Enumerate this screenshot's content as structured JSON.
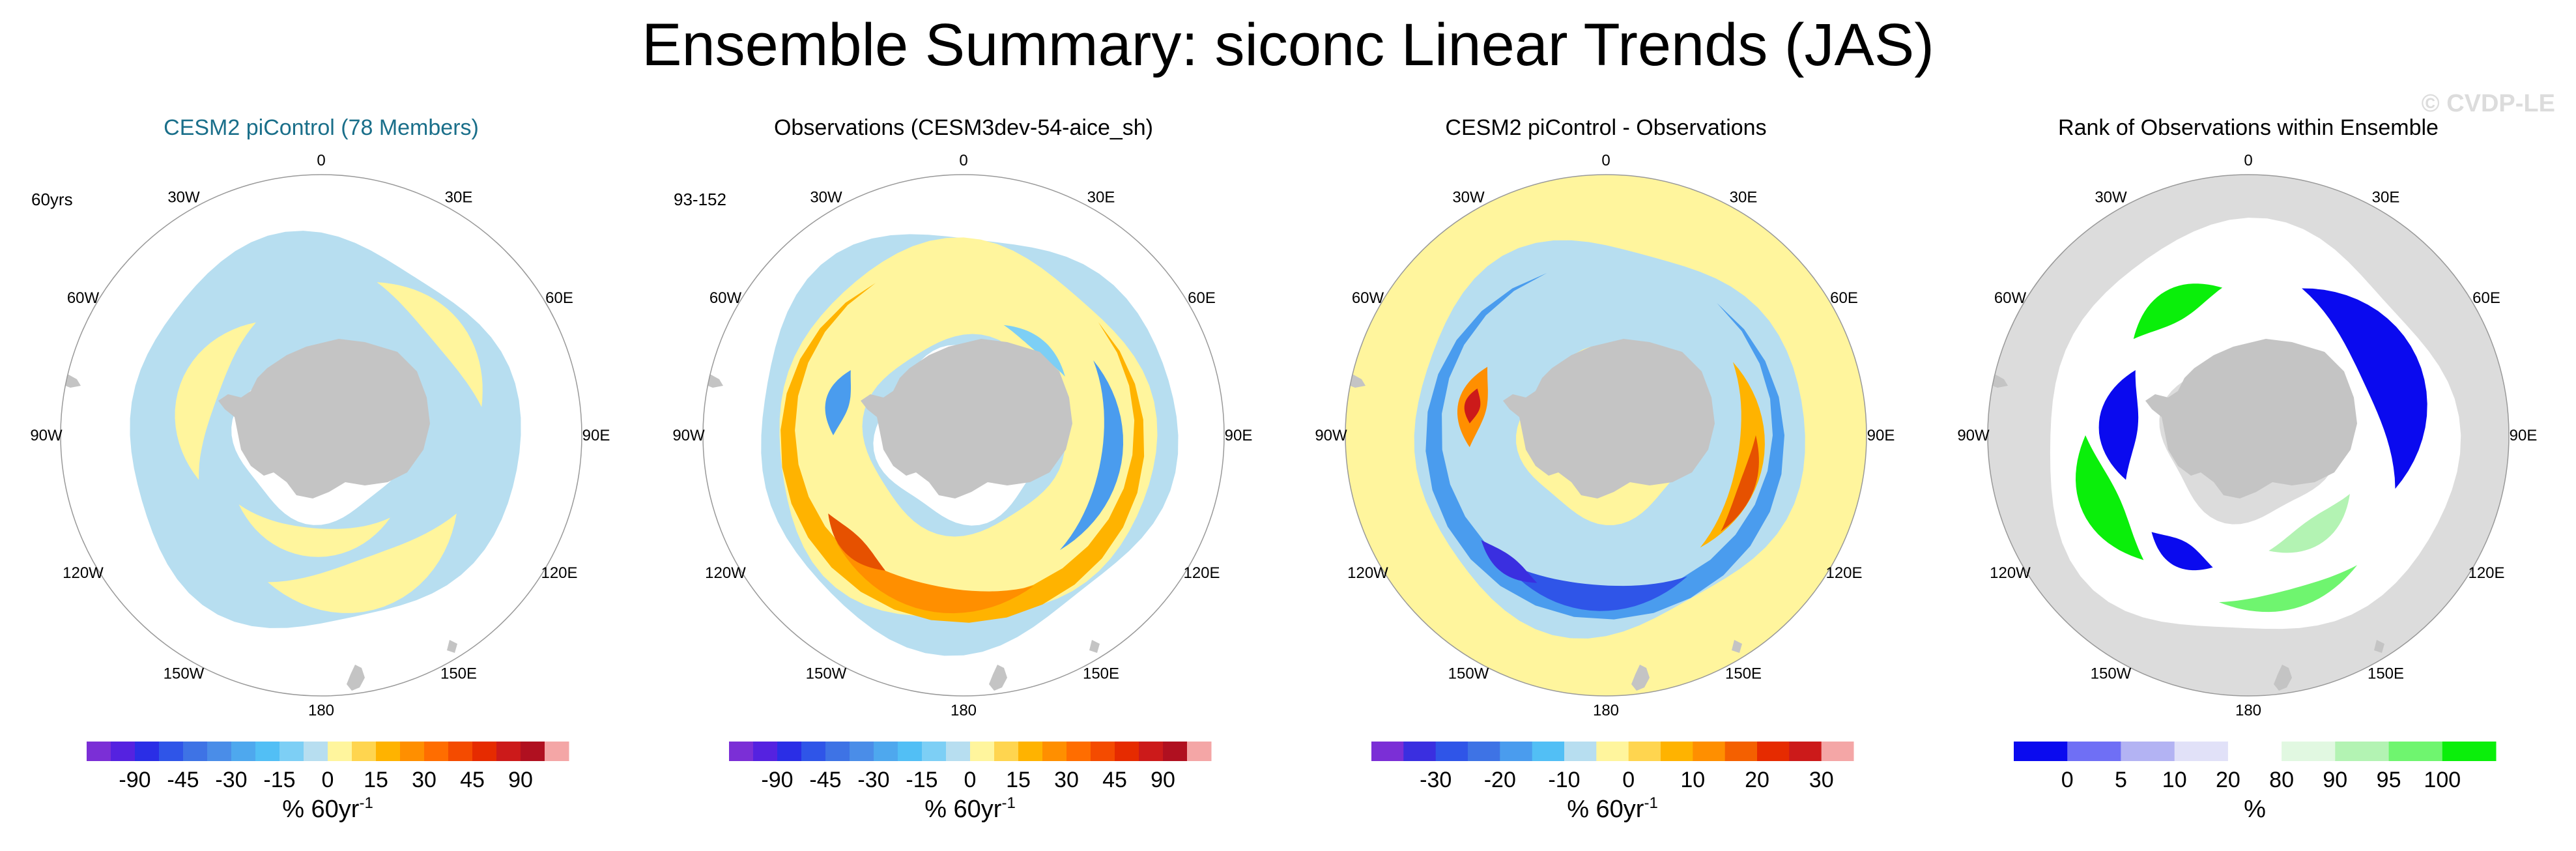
{
  "title": "Ensemble Summary: siconc Linear Trends (JAS)",
  "watermark": "© CVDP-LE",
  "colors": {
    "land": "#c4c4c4",
    "ocean_blank": "#ffffff",
    "circle_edge": "#999999",
    "title_accent": "#1a6f8a"
  },
  "chart_data": [
    {
      "type": "heatmap",
      "projection": "south-polar-stereographic",
      "title": "CESM2 piControl (78 Members)",
      "title_color": "#1a6f8a",
      "side_label": "60yrs",
      "lon_labels": [
        "0",
        "30E",
        "60E",
        "90E",
        "120E",
        "150E",
        "180",
        "150W",
        "120W",
        "90W",
        "60W",
        "30W"
      ],
      "colorbar": {
        "ticks": [
          "-90",
          "-45",
          "-30",
          "-15",
          "0",
          "15",
          "30",
          "45",
          "90"
        ],
        "unit": "% 60yr",
        "unit_sup": "-1",
        "colors": [
          "#7b2fd6",
          "#5522e0",
          "#2a2ee6",
          "#2f55e8",
          "#3e73e5",
          "#4a8de8",
          "#4ea8ee",
          "#52bff5",
          "#7dcff5",
          "#b7def0",
          "#fff59d",
          "#ffd54f",
          "#ffb300",
          "#ff8f00",
          "#ff6d00",
          "#f44b00",
          "#e62b00",
          "#cc1a1a",
          "#b01020",
          "#f4a6a6"
        ]
      }
    },
    {
      "type": "heatmap",
      "projection": "south-polar-stereographic",
      "title": "Observations (CESM3dev-54-aice_sh)",
      "side_label": "93-152",
      "lon_labels": [
        "0",
        "30E",
        "60E",
        "90E",
        "120E",
        "150E",
        "180",
        "150W",
        "120W",
        "90W",
        "60W",
        "30W"
      ],
      "colorbar": {
        "ticks": [
          "-90",
          "-45",
          "-30",
          "-15",
          "0",
          "15",
          "30",
          "45",
          "90"
        ],
        "unit": "% 60yr",
        "unit_sup": "-1",
        "colors": [
          "#7b2fd6",
          "#5522e0",
          "#2a2ee6",
          "#2f55e8",
          "#3e73e5",
          "#4a8de8",
          "#4ea8ee",
          "#52bff5",
          "#7dcff5",
          "#b7def0",
          "#fff59d",
          "#ffd54f",
          "#ffb300",
          "#ff8f00",
          "#ff6d00",
          "#f44b00",
          "#e62b00",
          "#cc1a1a",
          "#b01020",
          "#f4a6a6"
        ]
      }
    },
    {
      "type": "heatmap",
      "projection": "south-polar-stereographic",
      "title": "CESM2 piControl - Observations",
      "lon_labels": [
        "0",
        "30E",
        "60E",
        "90E",
        "120E",
        "150E",
        "180",
        "150W",
        "120W",
        "90W",
        "60W",
        "30W"
      ],
      "colorbar": {
        "ticks": [
          "-30",
          "-20",
          "-10",
          "0",
          "10",
          "20",
          "30"
        ],
        "unit": "% 60yr",
        "unit_sup": "-1",
        "colors": [
          "#7b2fd6",
          "#3a2fe0",
          "#2f55e8",
          "#3e73e5",
          "#4a9cee",
          "#52bff5",
          "#b7def0",
          "#fff59d",
          "#ffd54f",
          "#ffb300",
          "#ff8f00",
          "#f46000",
          "#e62b00",
          "#cc1a1a",
          "#f4a6a6"
        ]
      }
    },
    {
      "type": "heatmap",
      "projection": "south-polar-stereographic",
      "title": "Rank of Observations within Ensemble",
      "lon_labels": [
        "0",
        "30E",
        "60E",
        "90E",
        "120E",
        "150E",
        "180",
        "150W",
        "120W",
        "90W",
        "60W",
        "30W"
      ],
      "colorbar": {
        "ticks": [
          "0",
          "5",
          "10",
          "20",
          "80",
          "90",
          "95",
          "100"
        ],
        "unit": "%",
        "unit_sup": "",
        "colors": [
          "#0a0aef",
          "#6f6ff5",
          "#b3b3f3",
          "#e1e1f8",
          "#ffffff",
          "#e1f8e1",
          "#b3f3b3",
          "#6ff56f",
          "#0aef0a"
        ]
      }
    }
  ]
}
